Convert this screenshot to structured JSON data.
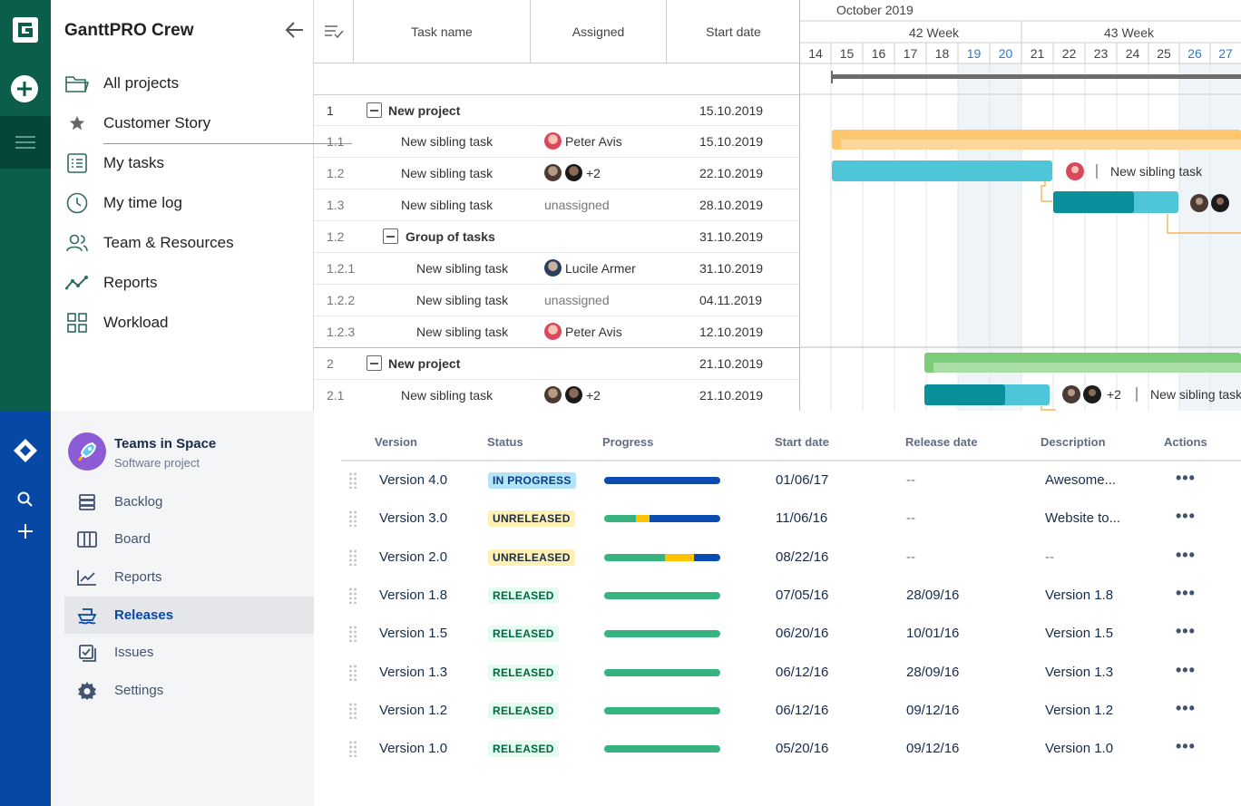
{
  "gantt": {
    "app_title": "GanttPRO Crew",
    "nav": [
      {
        "label": "All projects",
        "icon": "folder-icon"
      },
      {
        "label": "Customer Story",
        "icon": "star-icon"
      },
      {
        "label": "My tasks",
        "icon": "task-list-icon"
      },
      {
        "label": "My time log",
        "icon": "clock-icon"
      },
      {
        "label": "Team & Resources",
        "icon": "people-icon"
      },
      {
        "label": "Reports",
        "icon": "reports-line-icon"
      },
      {
        "label": "Workload",
        "icon": "grid-icon"
      }
    ],
    "columns": {
      "task_name": "Task name",
      "assigned": "Assigned",
      "start_date": "Start date"
    },
    "rows": [
      {
        "num": "1",
        "name": "New project",
        "type": "project",
        "assigned": "",
        "date": "15.10.2019"
      },
      {
        "num": "1.1",
        "name": "New sibling task",
        "type": "task",
        "assigned": "Peter Avis",
        "date": "15.10.2019"
      },
      {
        "num": "1.2",
        "name": "New sibling task",
        "type": "task",
        "assigned": "+2",
        "date": "22.10.2019"
      },
      {
        "num": "1.3",
        "name": "New sibling task",
        "type": "task",
        "assigned": "unassigned",
        "date": "28.10.2019"
      },
      {
        "num": "1.2",
        "name": "Group of tasks",
        "type": "group",
        "assigned": "",
        "date": "31.10.2019"
      },
      {
        "num": "1.2.1",
        "name": "New sibling task",
        "type": "subtask",
        "assigned": "Lucile Armer",
        "date": "31.10.2019"
      },
      {
        "num": "1.2.2",
        "name": "New sibling task",
        "type": "subtask",
        "assigned": "unassigned",
        "date": "04.11.2019"
      },
      {
        "num": "1.2.3",
        "name": "New sibling task",
        "type": "subtask",
        "assigned": "Peter Avis",
        "date": "12.10.2019"
      },
      {
        "num": "2",
        "name": "New project",
        "type": "project",
        "assigned": "",
        "date": "21.10.2019"
      },
      {
        "num": "2.1",
        "name": "New sibling task",
        "type": "task",
        "assigned": "+2",
        "date": "21.10.2019"
      }
    ],
    "timeline": {
      "month": "October 2019",
      "weeks": [
        "42 Week",
        "43 Week"
      ],
      "days": [
        "14",
        "15",
        "16",
        "17",
        "18",
        "19",
        "20",
        "21",
        "22",
        "23",
        "24",
        "25",
        "26",
        "27"
      ],
      "bar_label_1": "New sibling task",
      "bar_label_2": "+2",
      "bar_label_3": "New sibling task"
    },
    "colors": {
      "green": "#0b5e4b",
      "teal_bar": "#4fc6d8",
      "teal_dark": "#0a909b",
      "orange_bar": "#ffc76d",
      "green_bar": "#7ccc7a"
    }
  },
  "jira": {
    "project_name": "Teams in Space",
    "project_type": "Software project",
    "nav": [
      {
        "label": "Backlog",
        "icon": "backlog-icon"
      },
      {
        "label": "Board",
        "icon": "board-icon"
      },
      {
        "label": "Reports",
        "icon": "reports-chart-icon"
      },
      {
        "label": "Releases",
        "icon": "ship-icon"
      },
      {
        "label": "Issues",
        "icon": "issues-icon"
      },
      {
        "label": "Settings",
        "icon": "gear-icon"
      }
    ],
    "columns": {
      "version": "Version",
      "status": "Status",
      "progress": "Progress",
      "start_date": "Start date",
      "release_date": "Release date",
      "description": "Description",
      "actions": "Actions"
    },
    "releases": [
      {
        "version": "Version 4.0",
        "status": "IN PROGRESS",
        "start": "01/06/17",
        "release": "--",
        "desc": "Awesome...",
        "progress": {
          "done": 0,
          "in_progress": 0,
          "todo": 1,
          "blue_full": 1
        }
      },
      {
        "version": "Version 3.0",
        "status": "UNRELEASED",
        "start": "11/06/16",
        "release": "--",
        "desc": "Website to...",
        "progress": {
          "done": 0.27,
          "in_progress": 0.12,
          "todo": 0.61
        }
      },
      {
        "version": "Version 2.0",
        "status": "UNRELEASED",
        "start": "08/22/16",
        "release": "--",
        "desc": "--",
        "progress": {
          "done": 0.52,
          "in_progress": 0.25,
          "todo": 0.23
        }
      },
      {
        "version": "Version 1.8",
        "status": "RELEASED",
        "start": "07/05/16",
        "release": "28/09/16",
        "desc": "Version 1.8",
        "progress": {
          "done": 1
        }
      },
      {
        "version": "Version 1.5",
        "status": "RELEASED",
        "start": "06/20/16",
        "release": "10/01/16",
        "desc": "Version 1.5",
        "progress": {
          "done": 1
        }
      },
      {
        "version": "Version 1.3",
        "status": "RELEASED",
        "start": "06/12/16",
        "release": "28/09/16",
        "desc": "Version 1.3",
        "progress": {
          "done": 1
        }
      },
      {
        "version": "Version 1.2",
        "status": "RELEASED",
        "start": "06/12/16",
        "release": "09/12/16",
        "desc": "Version 1.2",
        "progress": {
          "done": 1
        }
      },
      {
        "version": "Version 1.0",
        "status": "RELEASED",
        "start": "05/20/16",
        "release": "09/12/16",
        "desc": "Version 1.0",
        "progress": {
          "done": 1
        }
      }
    ],
    "actions_label": "•••",
    "colors": {
      "blue": "#0747a6",
      "bar_blue": "#0c4bb0",
      "bar_green": "#36b37e",
      "bar_yellow": "#ffc400"
    }
  }
}
